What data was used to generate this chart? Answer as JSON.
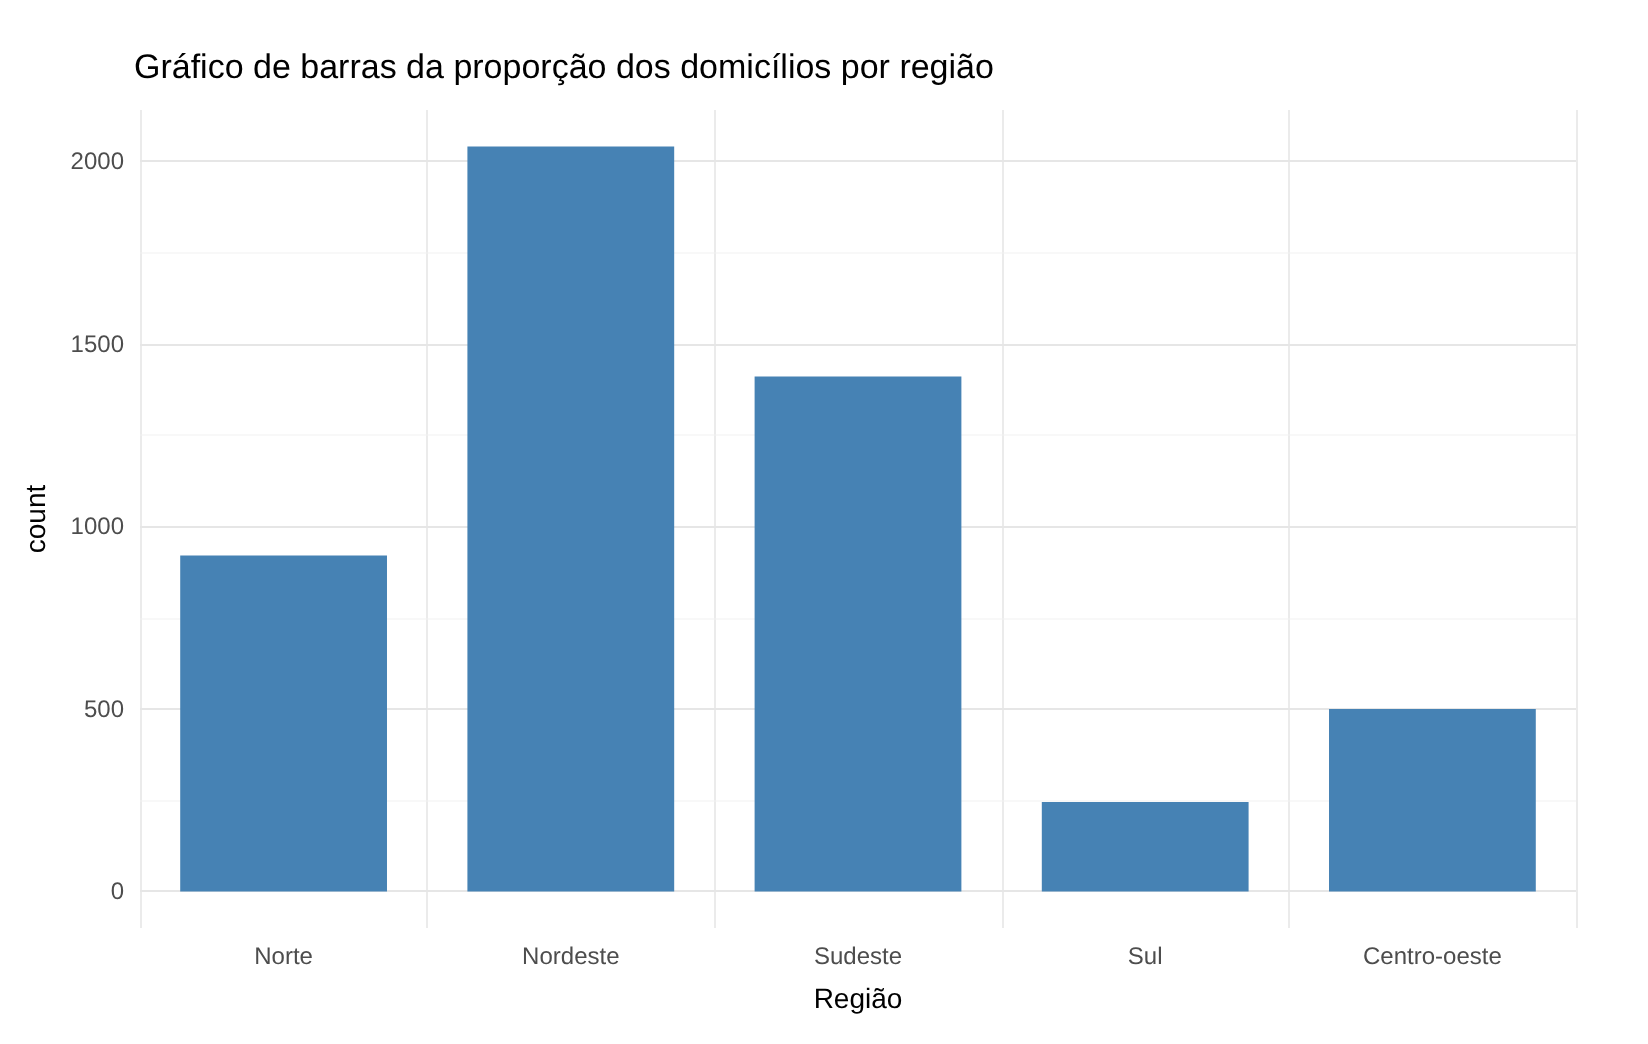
{
  "chart_data": {
    "type": "bar",
    "title": "Gráfico de barras da proporção dos domicílios por região",
    "xlabel": "Região",
    "ylabel": "count",
    "categories": [
      "Norte",
      "Nordeste",
      "Sudeste",
      "Sul",
      "Centro-oeste"
    ],
    "values": [
      920,
      2040,
      1410,
      245,
      500
    ],
    "color": "#4682b4",
    "ylim": [
      -100,
      2140
    ],
    "yticks": [
      0,
      500,
      1000,
      1500,
      2000
    ],
    "grid": true
  }
}
